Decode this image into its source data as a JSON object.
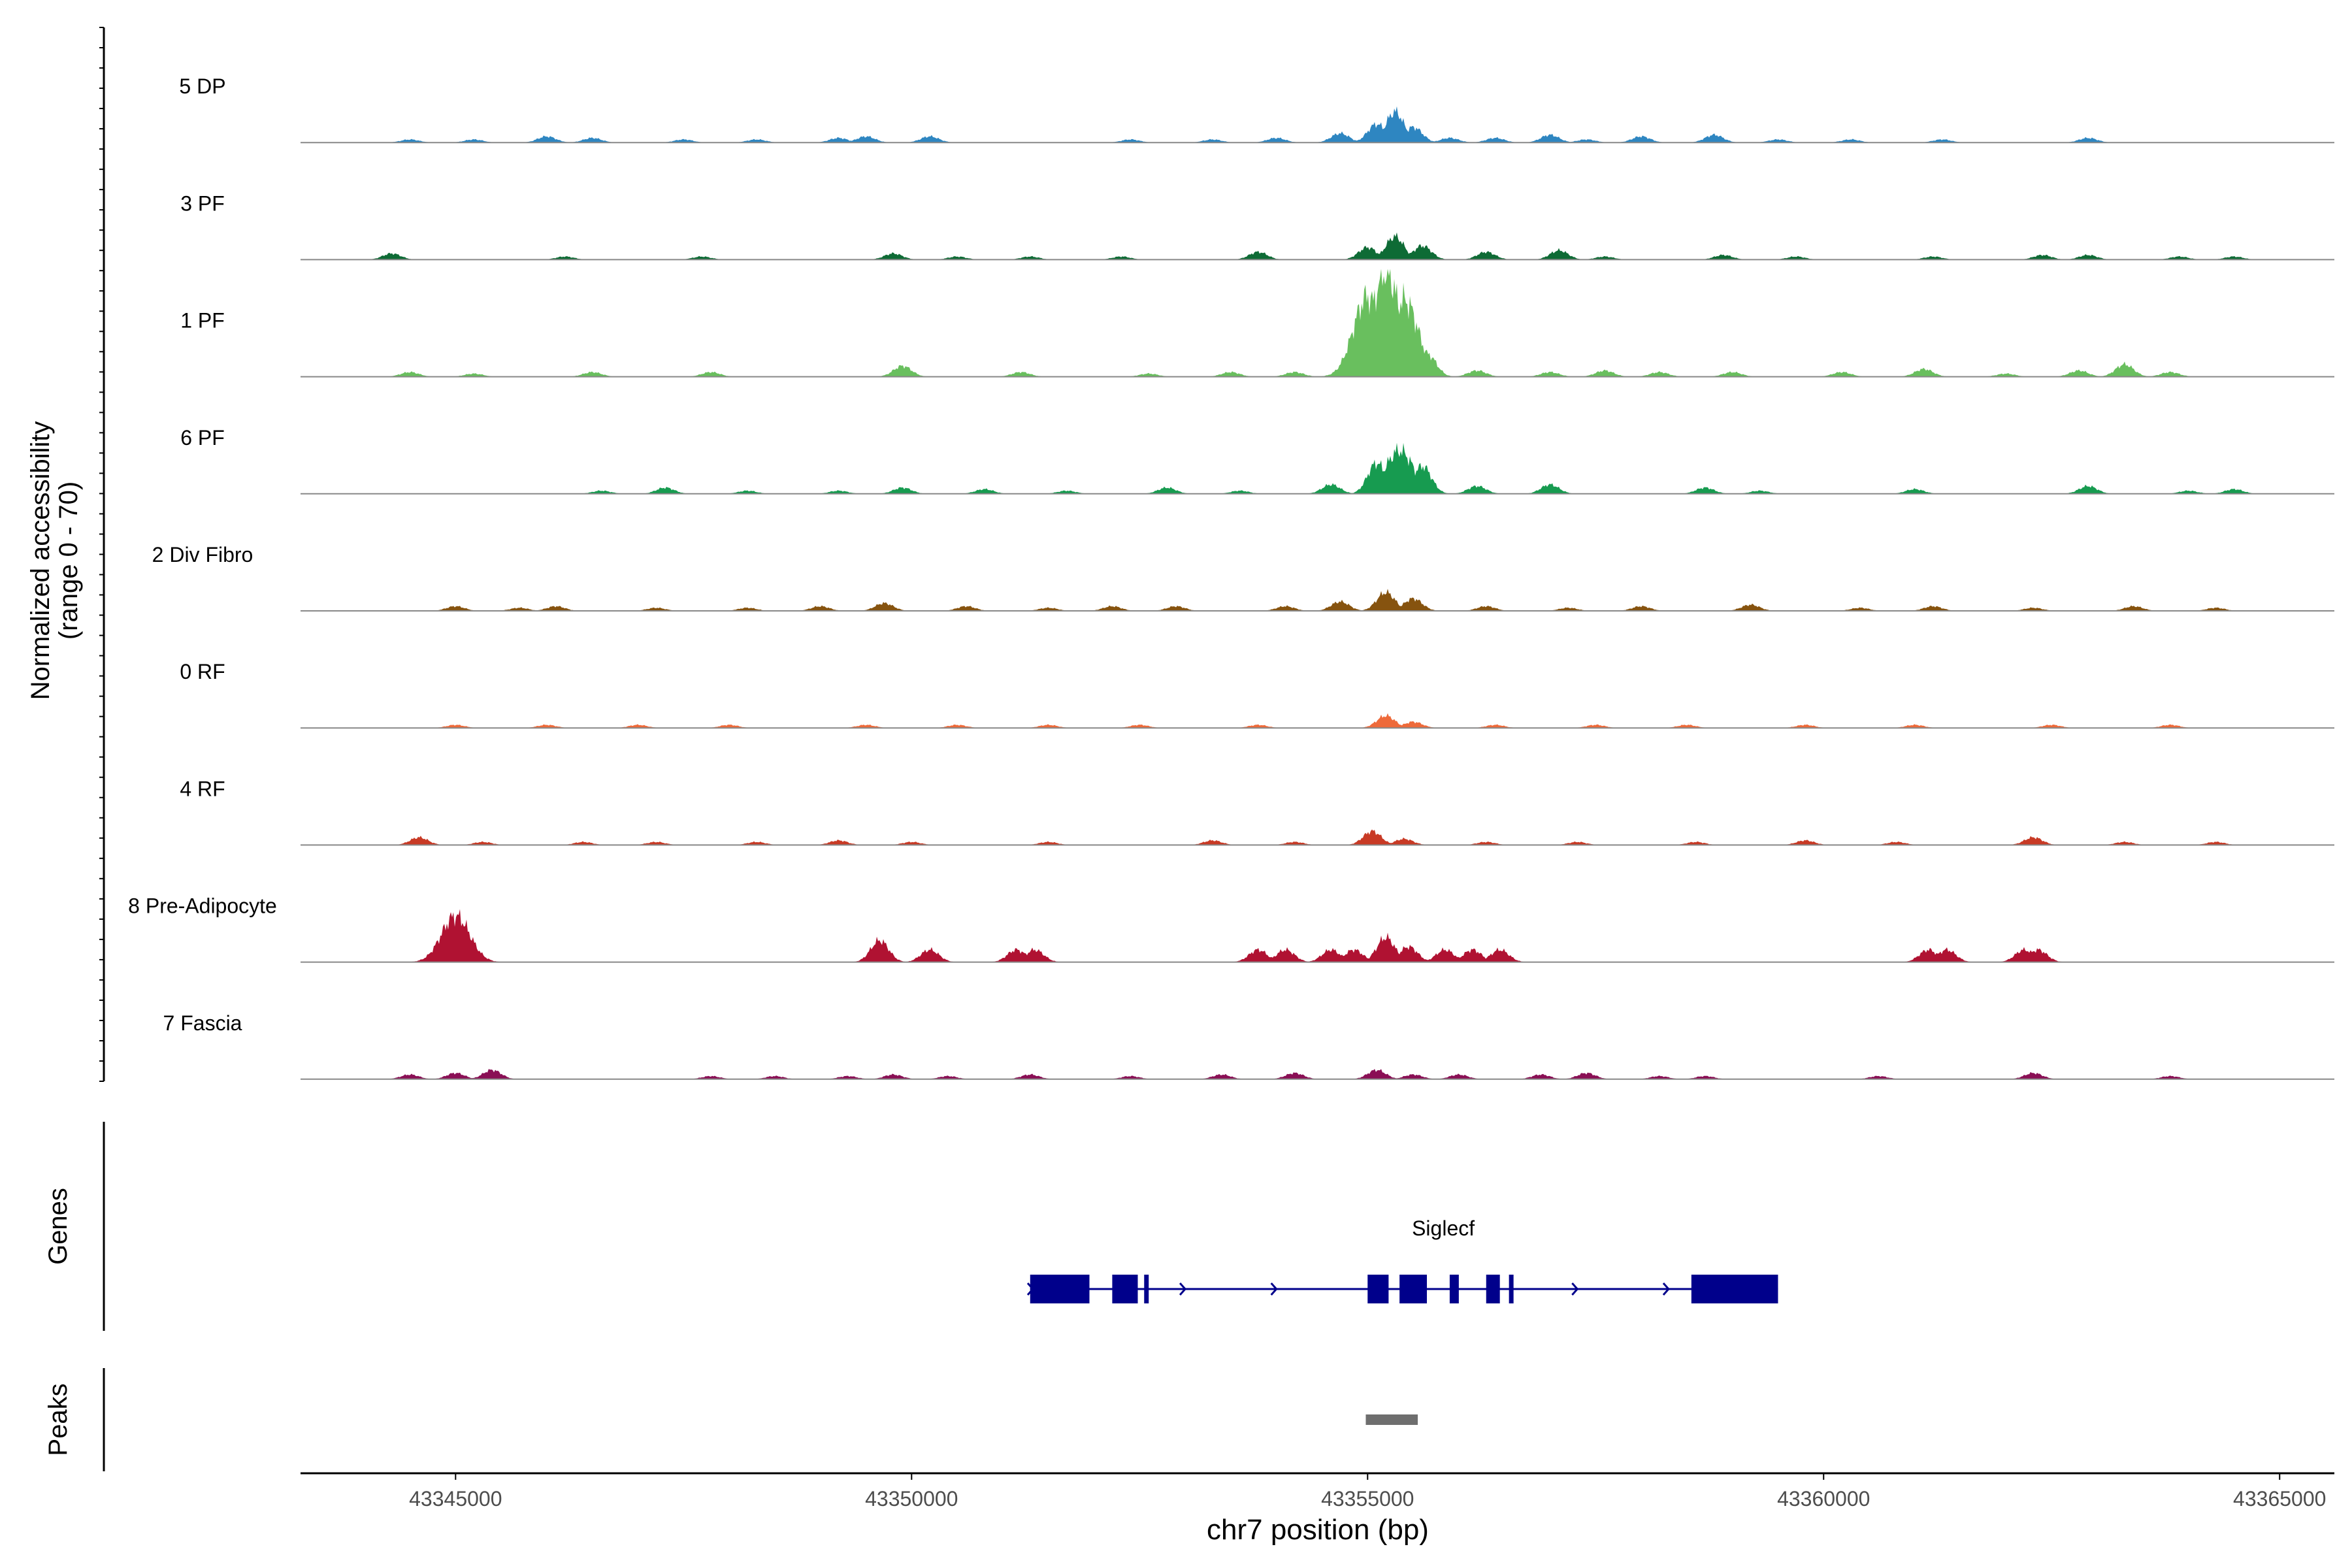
{
  "chart_data": {
    "type": "area",
    "title": "",
    "ylabel_line1": "Normalized accessibility",
    "ylabel_line2": "(range 0 - 70)",
    "ylim": [
      0,
      70
    ],
    "xlabel": "chr7 position (bp)",
    "xlim": [
      43343300,
      43365600
    ],
    "x_ticks": [
      43345000,
      43350000,
      43355000,
      43360000,
      43365000
    ],
    "x_tick_labels": [
      "43345000",
      "43350000",
      "43355000",
      "43360000",
      "43365000"
    ],
    "tracks": [
      {
        "name": "5 DP",
        "color": "#2E86C1",
        "peaks": [
          [
            43344500,
            2
          ],
          [
            43345200,
            2
          ],
          [
            43346000,
            4
          ],
          [
            43346500,
            3
          ],
          [
            43347500,
            2
          ],
          [
            43348300,
            2
          ],
          [
            43349200,
            3
          ],
          [
            43349500,
            4
          ],
          [
            43350200,
            4
          ],
          [
            43352400,
            2
          ],
          [
            43353300,
            2
          ],
          [
            43354000,
            3
          ],
          [
            43354700,
            6
          ],
          [
            43355100,
            12
          ],
          [
            43355300,
            20
          ],
          [
            43355500,
            10
          ],
          [
            43355900,
            3
          ],
          [
            43356400,
            3
          ],
          [
            43357000,
            5
          ],
          [
            43357400,
            2
          ],
          [
            43358000,
            4
          ],
          [
            43358800,
            5
          ],
          [
            43359500,
            2
          ],
          [
            43360300,
            2
          ],
          [
            43361300,
            2
          ],
          [
            43362900,
            3
          ]
        ]
      },
      {
        "name": "3 PF",
        "color": "#0E6B35",
        "peaks": [
          [
            43344300,
            4
          ],
          [
            43346200,
            2
          ],
          [
            43347700,
            2
          ],
          [
            43349800,
            4
          ],
          [
            43350500,
            2
          ],
          [
            43351300,
            2
          ],
          [
            43352300,
            2
          ],
          [
            43353800,
            5
          ],
          [
            43355000,
            8
          ],
          [
            43355300,
            15
          ],
          [
            43355600,
            9
          ],
          [
            43356300,
            5
          ],
          [
            43357100,
            6
          ],
          [
            43357600,
            2
          ],
          [
            43358900,
            3
          ],
          [
            43359700,
            2
          ],
          [
            43361200,
            2
          ],
          [
            43362400,
            3
          ],
          [
            43362900,
            3
          ],
          [
            43363900,
            2
          ],
          [
            43364500,
            2
          ]
        ]
      },
      {
        "name": "1 PF",
        "color": "#69BF5E",
        "peaks": [
          [
            43344500,
            3
          ],
          [
            43345200,
            2
          ],
          [
            43346500,
            3
          ],
          [
            43347800,
            3
          ],
          [
            43349900,
            7
          ],
          [
            43351200,
            3
          ],
          [
            43352600,
            2
          ],
          [
            43353500,
            3
          ],
          [
            43354200,
            3
          ],
          [
            43355000,
            52
          ],
          [
            43355200,
            68
          ],
          [
            43355400,
            50
          ],
          [
            43355650,
            15
          ],
          [
            43356200,
            4
          ],
          [
            43357000,
            3
          ],
          [
            43357600,
            4
          ],
          [
            43358200,
            3
          ],
          [
            43359000,
            3
          ],
          [
            43360200,
            3
          ],
          [
            43361100,
            5
          ],
          [
            43362000,
            2
          ],
          [
            43362800,
            4
          ],
          [
            43363300,
            8
          ],
          [
            43363800,
            3
          ]
        ]
      },
      {
        "name": "6 PF",
        "color": "#179B50",
        "peaks": [
          [
            43346600,
            2
          ],
          [
            43347300,
            4
          ],
          [
            43348200,
            2
          ],
          [
            43349200,
            2
          ],
          [
            43349900,
            4
          ],
          [
            43350800,
            3
          ],
          [
            43351700,
            2
          ],
          [
            43352800,
            4
          ],
          [
            43353600,
            2
          ],
          [
            43354600,
            6
          ],
          [
            43355100,
            20
          ],
          [
            43355350,
            28
          ],
          [
            43355600,
            18
          ],
          [
            43356200,
            5
          ],
          [
            43357000,
            6
          ],
          [
            43358700,
            4
          ],
          [
            43359300,
            2
          ],
          [
            43361000,
            3
          ],
          [
            43362900,
            5
          ],
          [
            43364000,
            2
          ],
          [
            43364500,
            3
          ]
        ]
      },
      {
        "name": "2 Div Fibro",
        "color": "#86530F",
        "peaks": [
          [
            43345000,
            3
          ],
          [
            43345700,
            2
          ],
          [
            43346100,
            3
          ],
          [
            43347200,
            2
          ],
          [
            43348200,
            2
          ],
          [
            43349000,
            3
          ],
          [
            43349700,
            5
          ],
          [
            43350600,
            3
          ],
          [
            43351500,
            2
          ],
          [
            43352200,
            3
          ],
          [
            43352900,
            3
          ],
          [
            43354100,
            3
          ],
          [
            43354700,
            6
          ],
          [
            43355200,
            12
          ],
          [
            43355500,
            8
          ],
          [
            43356300,
            3
          ],
          [
            43357200,
            2
          ],
          [
            43358000,
            3
          ],
          [
            43359200,
            4
          ],
          [
            43360400,
            2
          ],
          [
            43361200,
            3
          ],
          [
            43362300,
            2
          ],
          [
            43363400,
            3
          ],
          [
            43364300,
            2
          ]
        ]
      },
      {
        "name": "0 RF",
        "color": "#EE6A3A",
        "peaks": [
          [
            43345000,
            2
          ],
          [
            43346000,
            2
          ],
          [
            43347000,
            2
          ],
          [
            43348000,
            2
          ],
          [
            43349500,
            2
          ],
          [
            43350500,
            2
          ],
          [
            43351500,
            2
          ],
          [
            43352500,
            2
          ],
          [
            43353800,
            2
          ],
          [
            43355200,
            8
          ],
          [
            43355500,
            4
          ],
          [
            43356400,
            2
          ],
          [
            43357500,
            2
          ],
          [
            43358500,
            2
          ],
          [
            43359800,
            2
          ],
          [
            43361000,
            2
          ],
          [
            43362500,
            2
          ],
          [
            43363800,
            2
          ]
        ]
      },
      {
        "name": "4 RF",
        "color": "#C83A25",
        "peaks": [
          [
            43344600,
            5
          ],
          [
            43345300,
            2
          ],
          [
            43346400,
            2
          ],
          [
            43347200,
            2
          ],
          [
            43348300,
            2
          ],
          [
            43349200,
            3
          ],
          [
            43350000,
            2
          ],
          [
            43351500,
            2
          ],
          [
            43353300,
            3
          ],
          [
            43354200,
            2
          ],
          [
            43355050,
            9
          ],
          [
            43355400,
            4
          ],
          [
            43356300,
            2
          ],
          [
            43357300,
            2
          ],
          [
            43358600,
            2
          ],
          [
            43359800,
            3
          ],
          [
            43360800,
            2
          ],
          [
            43362300,
            5
          ],
          [
            43363300,
            2
          ],
          [
            43364300,
            2
          ]
        ]
      },
      {
        "name": "8 Pre-Adipocyte",
        "color": "#B01232",
        "peaks": [
          [
            43345000,
            30
          ],
          [
            43349650,
            14
          ],
          [
            43350200,
            8
          ],
          [
            43351150,
            8
          ],
          [
            43351350,
            8
          ],
          [
            43353800,
            8
          ],
          [
            43354100,
            8
          ],
          [
            43354600,
            8
          ],
          [
            43354850,
            8
          ],
          [
            43355200,
            16
          ],
          [
            43355450,
            10
          ],
          [
            43355850,
            8
          ],
          [
            43356150,
            8
          ],
          [
            43356450,
            8
          ],
          [
            43361150,
            8
          ],
          [
            43361350,
            8
          ],
          [
            43362200,
            8
          ],
          [
            43362350,
            8
          ]
        ]
      },
      {
        "name": "7 Fascia",
        "color": "#8A0F55",
        "peaks": [
          [
            43344500,
            3
          ],
          [
            43345000,
            4
          ],
          [
            43345400,
            6
          ],
          [
            43347800,
            2
          ],
          [
            43348500,
            2
          ],
          [
            43349300,
            2
          ],
          [
            43349800,
            3
          ],
          [
            43350400,
            2
          ],
          [
            43351300,
            3
          ],
          [
            43352400,
            2
          ],
          [
            43353400,
            3
          ],
          [
            43354200,
            4
          ],
          [
            43355100,
            6
          ],
          [
            43355500,
            3
          ],
          [
            43356000,
            3
          ],
          [
            43356900,
            3
          ],
          [
            43357400,
            4
          ],
          [
            43358200,
            2
          ],
          [
            43358700,
            2
          ],
          [
            43360600,
            2
          ],
          [
            43362300,
            4
          ],
          [
            43363800,
            2
          ]
        ]
      }
    ],
    "genes_label": "Genes",
    "gene": {
      "name": "Siglecf",
      "strand": "+",
      "start": 43351300,
      "end": 43359500,
      "exons": [
        [
          43351300,
          43351950
        ],
        [
          43352200,
          43352480
        ],
        [
          43352550,
          43352600
        ],
        [
          43355000,
          43355230
        ],
        [
          43355350,
          43355650
        ],
        [
          43355900,
          43356000
        ],
        [
          43356300,
          43356450
        ],
        [
          43356550,
          43356600
        ],
        [
          43358550,
          43359500
        ]
      ]
    },
    "peaks_label": "Peaks",
    "peaks": [
      [
        43354980,
        43355550
      ]
    ]
  }
}
